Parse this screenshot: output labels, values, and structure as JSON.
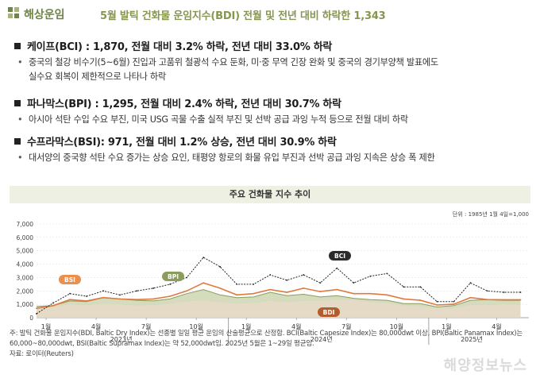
{
  "header": {
    "section": "해상운임",
    "title": "5월 발틱 건화물 운임지수(BDI) 전월 및 전년 대비 하락한 1,343"
  },
  "blocks": [
    {
      "title": "케이프(BCI) : 1,870, 전월 대비 3.2% 하락, 전년 대비 33.0% 하락",
      "bullets": [
        "중국의 철강 비수기(5~6월) 진입과 고품위 철광석 수요 둔화, 미·중 무역 긴장 완화 및 중국의 경기부양책 발표에도",
        "실수요 회복이 제한적으로 나타나 하락"
      ]
    },
    {
      "title": "파나막스(BPI) : 1,295, 전월 대비 2.4% 하락, 전년 대비 30.7% 하락",
      "bullets": [
        "아시아 석탄 수입 수요 부진, 미국 USG 곡물 수출 실적 부진 및 선박 공급 과잉 누적 등으로 전월 대비 하락"
      ]
    },
    {
      "title": "수프라막스(BSI): 971, 전월 대비 1.2% 상승, 전년 대비 30.9% 하락",
      "bullets": [
        "대서양의 중국향 석탄 수요 증가는 상승 요인, 태평양 항로의 화물 유입 부진과 선박 공급 과잉 지속은 상승 폭 제한"
      ]
    }
  ],
  "chart_title": "주요 건화물 지수 추이",
  "unit_note": "단위 : 1985년 1월 4일=1,000",
  "footnote": [
    "주: 발틱 건화물 운임지수(BDI, Baltic Dry Index)는 선종별 일일 평균 운임의 산술평균으로 산정함. BCI(Baltic Capesize Index)는 80,000dwt 이상, BPI(Baltic Panamax Index)는",
    "60,000~80,000dwt, BSI(Baltic Supramax Index)는 약 52,000dwt임. 2025년 5월은 1~29일 평균임.",
    "자료: 로이터(Reuters)"
  ],
  "watermark": "해양정보뉴스",
  "colors": {
    "bdi": "#e07a3c",
    "bpi": "#8c9c5c",
    "bsi": "#e9904f",
    "bci": "#222222",
    "bci_area": "#d9d3cc",
    "bpi_area": "#c7cfa7"
  },
  "chart_data": {
    "type": "line",
    "ylim": [
      0,
      7000
    ],
    "yticks": [
      0,
      1000,
      2000,
      3000,
      4000,
      5000,
      6000,
      7000
    ],
    "yticklabels": [
      "0",
      "1,000",
      "2,000",
      "3,000",
      "4,000",
      "5,000",
      "6,000",
      "7,000"
    ],
    "month_labels": [
      "1월",
      "4월",
      "7월",
      "10월",
      "1월",
      "4월",
      "7월",
      "10월",
      "1월",
      "4월"
    ],
    "month_label_x": [
      0,
      3,
      6,
      9,
      12,
      15,
      18,
      21,
      24,
      27
    ],
    "year_labels": [
      "2023년",
      "2024년",
      "2025년"
    ],
    "year_label_x": [
      4.5,
      16.5,
      25.5
    ],
    "x": [
      0,
      1,
      2,
      3,
      4,
      5,
      6,
      7,
      8,
      9,
      10,
      11,
      12,
      13,
      14,
      15,
      16,
      17,
      18,
      19,
      20,
      21,
      22,
      23,
      24,
      25,
      26,
      27,
      28,
      29
    ],
    "series": [
      {
        "name": "BCI",
        "values": [
          300,
          1100,
          1800,
          1600,
          2000,
          1700,
          2000,
          2200,
          2500,
          3000,
          4500,
          3800,
          2500,
          2500,
          3200,
          2800,
          3200,
          2600,
          3700,
          2600,
          3100,
          3300,
          2300,
          2300,
          1200,
          1200,
          2600,
          2000,
          1900,
          1900
        ]
      },
      {
        "name": "BPI",
        "values": [
          850,
          900,
          1250,
          1200,
          1500,
          1400,
          1300,
          1250,
          1400,
          1800,
          2100,
          1700,
          1500,
          1550,
          1900,
          1650,
          1750,
          1550,
          1650,
          1450,
          1350,
          1300,
          1050,
          1050,
          800,
          900,
          1300,
          1350,
          1300,
          1300
        ]
      },
      {
        "name": "BSI",
        "values": [
          700,
          800,
          1000,
          950,
          1050,
          1000,
          900,
          950,
          1050,
          1200,
          1300,
          1150,
          1050,
          1100,
          1250,
          1150,
          1250,
          1250,
          1350,
          1300,
          1150,
          1100,
          900,
          850,
          700,
          700,
          950,
          950,
          1000,
          980
        ]
      },
      {
        "name": "BDI",
        "values": [
          700,
          900,
          1350,
          1250,
          1500,
          1400,
          1350,
          1400,
          1600,
          2000,
          2600,
          2200,
          1700,
          1800,
          2100,
          1900,
          2200,
          1950,
          2100,
          1800,
          1800,
          1700,
          1400,
          1300,
          950,
          1000,
          1500,
          1350,
          1343,
          1343
        ]
      }
    ],
    "legend": [
      "BSI",
      "BPI",
      "BCI",
      "BDI"
    ]
  }
}
